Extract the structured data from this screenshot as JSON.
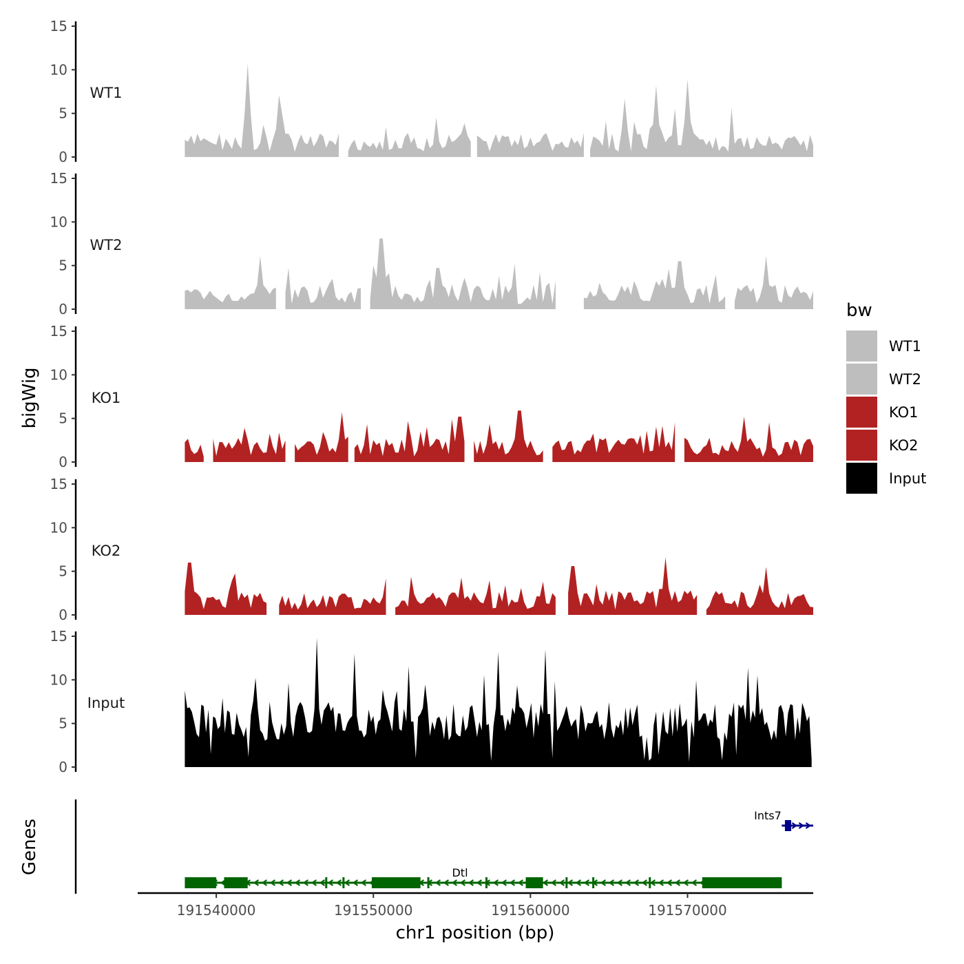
{
  "chart_data": {
    "type": "area",
    "title": "",
    "xlabel": "chr1 position (bp)",
    "ylabel": "bigWig",
    "genes_label": "Genes",
    "x_range": [
      191535000,
      191578000
    ],
    "x_ticks": [
      191540000,
      191550000,
      191560000,
      191570000
    ],
    "x_tick_labels": [
      "191540000",
      "191550000",
      "191560000",
      "191570000"
    ],
    "y_range": [
      0,
      15
    ],
    "y_ticks": [
      0,
      5,
      10,
      15
    ],
    "y_tick_labels": [
      "0",
      "5",
      "10",
      "15"
    ],
    "grid": false,
    "legend": {
      "title": "bw",
      "position": "right",
      "entries": [
        {
          "label": "WT1",
          "color": "#bebebe"
        },
        {
          "label": "WT2",
          "color": "#bebebe"
        },
        {
          "label": "KO1",
          "color": "#b22222"
        },
        {
          "label": "KO2",
          "color": "#b22222"
        },
        {
          "label": "Input",
          "color": "#000000"
        }
      ]
    },
    "tracks": [
      {
        "name": "WT1",
        "color": "#bebebe",
        "x_start": 191538000,
        "x_end": 191578000,
        "bin_width": 200,
        "peaks": [
          [
            191542000,
            10.7
          ],
          [
            191544000,
            7.1
          ],
          [
            191568000,
            8.2
          ],
          [
            191570000,
            8.9
          ],
          [
            191566000,
            6.7
          ]
        ],
        "gaps": [
          [
            191548000,
            191548200
          ],
          [
            191556300,
            191556500
          ],
          [
            191563500,
            191563700
          ]
        ]
      },
      {
        "name": "WT2",
        "color": "#bebebe",
        "x_start": 191538000,
        "x_end": 191578000,
        "bin_width": 200,
        "peaks": [
          [
            191542800,
            6.1
          ],
          [
            191550500,
            8.1
          ],
          [
            191569500,
            5.5
          ],
          [
            191575000,
            6.1
          ]
        ],
        "gaps": [
          [
            191544000,
            191544300
          ],
          [
            191549400,
            191549700
          ],
          [
            191561800,
            191563200
          ],
          [
            191572600,
            191572900
          ]
        ]
      },
      {
        "name": "KO1",
        "color": "#b22222",
        "x_start": 191538000,
        "x_end": 191578000,
        "bin_width": 200,
        "peaks": [
          [
            191548000,
            5.7
          ],
          [
            191555500,
            5.2
          ],
          [
            191559300,
            5.9
          ],
          [
            191573600,
            5.2
          ]
        ],
        "gaps": [
          [
            191539400,
            191539600
          ],
          [
            191544500,
            191544800
          ],
          [
            191548500,
            191548700
          ],
          [
            191555900,
            191556200
          ],
          [
            191561000,
            191561300
          ],
          [
            191569300,
            191569600
          ]
        ]
      },
      {
        "name": "KO2",
        "color": "#b22222",
        "x_start": 191538000,
        "x_end": 191578000,
        "bin_width": 200,
        "peaks": [
          [
            191538300,
            6.0
          ],
          [
            191562700,
            5.6
          ],
          [
            191568600,
            6.6
          ],
          [
            191575000,
            5.5
          ]
        ],
        "gaps": [
          [
            191543300,
            191543800
          ],
          [
            191551000,
            191551300
          ],
          [
            191561800,
            191562300
          ],
          [
            191570700,
            191571000
          ]
        ]
      },
      {
        "name": "Input",
        "color": "#000000",
        "x_start": 191538000,
        "x_end": 191578000,
        "bin_width": 150,
        "peaks": [
          [
            191546400,
            14.8
          ],
          [
            191548800,
            13.0
          ],
          [
            191558000,
            13.2
          ],
          [
            191561000,
            13.5
          ],
          [
            191552300,
            11.6
          ]
        ],
        "gaps": []
      }
    ],
    "genes": [
      {
        "name": "Dtl",
        "strand": "-",
        "color": "#006400",
        "start": 191538000,
        "end": 191576000,
        "exons": [
          [
            191538000,
            191540000,
            "utr"
          ],
          [
            191540500,
            191542000,
            "cds"
          ],
          [
            191549900,
            191553000,
            "cds"
          ],
          [
            191559700,
            191560800,
            "cds"
          ],
          [
            191571000,
            191576000,
            "cds"
          ]
        ],
        "small_exons": [
          191547000,
          191548100,
          191553500,
          191557200,
          191560200,
          191562300,
          191564000,
          191567600,
          191571000
        ]
      },
      {
        "name": "Ints7",
        "strand": "+",
        "color": "#00008b",
        "start": 191576000,
        "end": 191578000,
        "exons": [
          [
            191576200,
            191576600,
            "cds"
          ]
        ],
        "small_exons": []
      }
    ]
  }
}
